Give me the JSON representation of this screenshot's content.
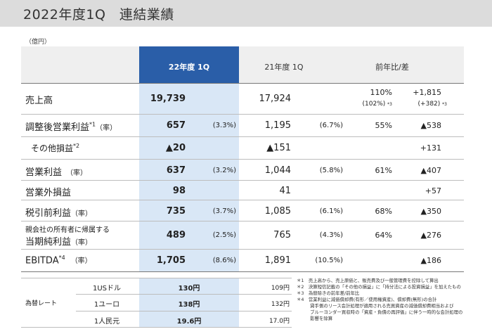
{
  "slide": {
    "title": "2022年度1Q　連結業績",
    "unit": "（億円）"
  },
  "header": {
    "fy22": "22年度 1Q",
    "fy21": "21年度 1Q",
    "yoy": "前年比/差"
  },
  "rows": [
    {
      "label": "売上高",
      "sup": "",
      "suffix": "",
      "v22": "19,739",
      "p22": "",
      "v21": "17,924",
      "p21": "",
      "yoy": "110%",
      "yoy2": "(102%)",
      "yoy2_sup": "*3",
      "diff": "+1,815",
      "diff2": "(+382)",
      "diff2_sup": "*3"
    },
    {
      "label": "調整後営業利益",
      "sup": "*1",
      "suffix": "（率）",
      "v22": "657",
      "p22": "(3.3%)",
      "v21": "1,195",
      "p21": "(6.7%)",
      "yoy": "55%",
      "diff": "▲538"
    },
    {
      "label": "その他損益",
      "sup": "*2",
      "suffix": "",
      "v22": "▲20",
      "p22": "",
      "v21": "▲151",
      "p21": "",
      "yoy": "",
      "diff": "+131"
    },
    {
      "label": "営業利益",
      "sup": "",
      "suffix": "（率）",
      "v22": "637",
      "p22": "(3.2%)",
      "v21": "1,044",
      "p21": "(5.8%)",
      "yoy": "61%",
      "diff": "▲407"
    },
    {
      "label": "営業外損益",
      "sup": "",
      "suffix": "",
      "v22": "98",
      "p22": "",
      "v21": "41",
      "p21": "",
      "yoy": "",
      "diff": "+57"
    },
    {
      "label": "税引前利益",
      "sup": "",
      "suffix": "（率）",
      "v22": "735",
      "p22": "(3.7%)",
      "v21": "1,085",
      "p21": "(6.1%)",
      "yoy": "68%",
      "diff": "▲350"
    },
    {
      "label_line1": "親会社の所有者に帰属する",
      "label": "当期純利益",
      "sup": "",
      "suffix": "（率）",
      "v22": "489",
      "p22": "(2.5%)",
      "v21": "765",
      "p21": "(4.3%)",
      "yoy": "64%",
      "diff": "▲276"
    },
    {
      "label": "EBITDA",
      "sup": "*4",
      "suffix": "（率）",
      "v22": "1,705",
      "p22": "(8.6%)",
      "v21": "1,891",
      "p21": "(10.5%)",
      "yoy": "",
      "diff": "▲186"
    }
  ],
  "fx": {
    "label": "為替レート",
    "rows": [
      {
        "currency": "1USドル",
        "v22": "130円",
        "v21": "109円"
      },
      {
        "currency": "1ユーロ",
        "v22": "138円",
        "v21": "132円"
      },
      {
        "currency": "1人民元",
        "v22": "19.6円",
        "v21": "17.0円"
      }
    ]
  },
  "notes": [
    "＊1　売上高から、売上原価と、販売費及び一般管理費を控除して算出",
    "＊2　決算短信記載の「その他の損益」に「持分法による投資損益」を加えたもの",
    "＊3　為替除きの前年差/前年比",
    "＊4　営業利益に減価償却費(有形／使用権資産)、償却費(無形)の合計",
    "　　　貸手側のリース会計処理が適用される売買資産の減価償却費相当および",
    "　　　ブルーヨンダー買収時の「資産・負債の再評価」に伴う一時的な会計処理の",
    "　　　影響を除算"
  ]
}
